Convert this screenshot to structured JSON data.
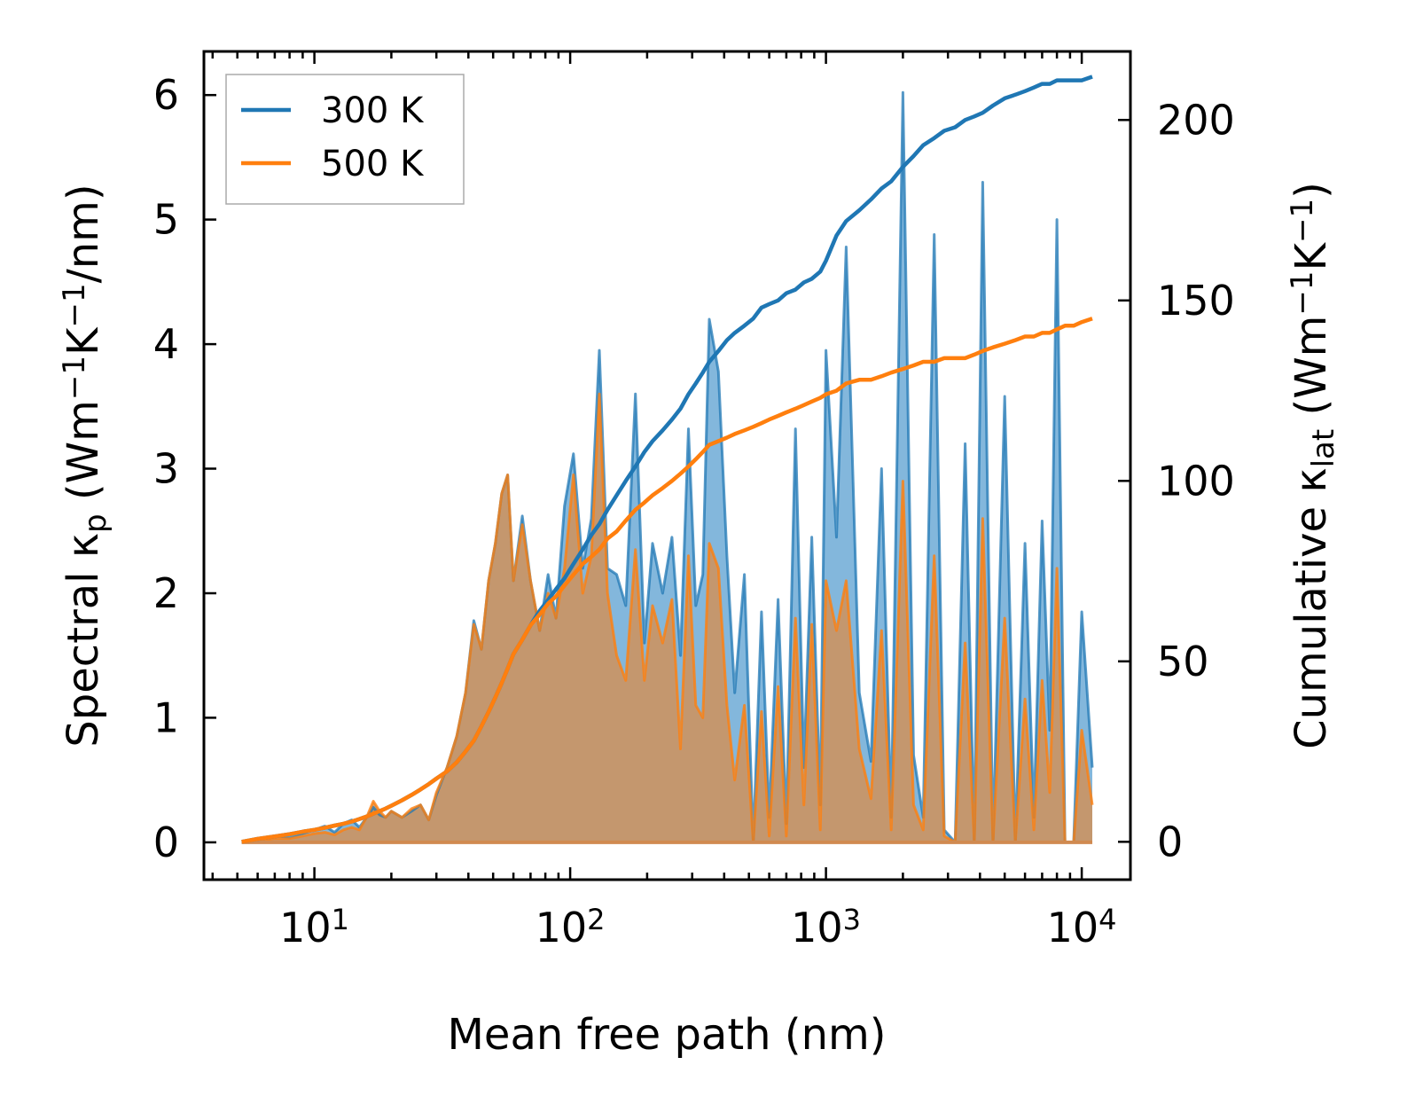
{
  "chart_data": {
    "type": "line",
    "xscale": "log",
    "xlabel": "Mean free path (nm)",
    "xlim": [
      3.7,
      15500
    ],
    "xticks": [
      {
        "base": "10",
        "exp": "1",
        "value": 10
      },
      {
        "base": "10",
        "exp": "2",
        "value": 100
      },
      {
        "base": "10",
        "exp": "3",
        "value": 1000
      },
      {
        "base": "10",
        "exp": "4",
        "value": 10000
      }
    ],
    "ylabel_left": {
      "prefix": "Spectral κ",
      "sub": "p",
      "unit_a": " (Wm",
      "sup_a": "−1",
      "unit_b": "K",
      "sup_b": "−1",
      "unit_c": "/nm)"
    },
    "ylim_left": [
      -0.3,
      6.35
    ],
    "yticks_left": [
      0,
      1,
      2,
      3,
      4,
      5,
      6
    ],
    "ylabel_right": {
      "prefix": "Cumulative κ",
      "sub": "lat",
      "unit_a": " (Wm",
      "sup_a": "−1",
      "unit_b": "K",
      "sup_b": "−1",
      "unit_c": ")"
    },
    "ylim_right": [
      -10.5,
      219
    ],
    "yticks_right": [
      0,
      50,
      100,
      150,
      200
    ],
    "legend": {
      "position": "top-left",
      "entries": [
        "300 K",
        "500 K"
      ]
    },
    "colors": {
      "s300": "#1f77b4",
      "s500": "#ff7f0e",
      "fill300": "#5a9fd0",
      "fill500": "#d0925a",
      "overlap": "#c49a6c"
    },
    "series": [
      {
        "name": "300 K",
        "x": [
          5.2,
          6,
          7,
          8,
          9,
          10,
          11,
          12,
          13,
          14,
          15,
          16,
          17,
          18,
          19,
          20,
          22,
          24,
          26,
          28,
          30,
          33,
          36,
          39,
          42,
          45,
          48,
          51,
          54,
          57,
          60,
          65,
          70,
          76,
          82,
          88,
          95,
          103,
          112,
          121,
          130,
          140,
          152,
          165,
          180,
          195,
          210,
          230,
          250,
          270,
          290,
          310,
          330,
          350,
          380,
          410,
          440,
          480,
          520,
          560,
          600,
          650,
          700,
          760,
          820,
          880,
          950,
          1000,
          1100,
          1200,
          1350,
          1500,
          1650,
          1800,
          2000,
          2200,
          2400,
          2650,
          2900,
          3200,
          3500,
          3800,
          4100,
          4500,
          5000,
          5500,
          6000,
          6500,
          7000,
          7500,
          8000,
          8600,
          9300,
          10000,
          11000
        ],
        "spectral": [
          0.0,
          0.02,
          0.05,
          0.04,
          0.07,
          0.1,
          0.13,
          0.08,
          0.15,
          0.18,
          0.12,
          0.2,
          0.28,
          0.22,
          0.2,
          0.25,
          0.2,
          0.25,
          0.3,
          0.18,
          0.38,
          0.6,
          0.85,
          1.2,
          1.78,
          1.55,
          2.1,
          2.4,
          2.8,
          2.95,
          2.1,
          2.62,
          2.1,
          1.7,
          2.15,
          1.8,
          2.7,
          3.12,
          2.2,
          2.6,
          3.95,
          2.2,
          2.15,
          1.9,
          3.6,
          1.6,
          2.4,
          2.0,
          2.45,
          1.5,
          3.32,
          1.9,
          2.15,
          4.2,
          3.78,
          2.3,
          1.2,
          2.15,
          0.0,
          1.85,
          0.2,
          1.95,
          0.15,
          3.32,
          0.6,
          2.45,
          0.3,
          3.95,
          2.45,
          4.78,
          1.2,
          0.65,
          3.0,
          0.2,
          6.02,
          0.7,
          0.2,
          4.88,
          0.1,
          0.0,
          3.2,
          0.0,
          5.3,
          0.0,
          3.58,
          0.0,
          2.4,
          0.2,
          2.58,
          0.9,
          5.0,
          0.0,
          0.0,
          1.85,
          0.6
        ],
        "cumulative": [
          0,
          0.8,
          1.5,
          2.1,
          2.8,
          3.3,
          3.9,
          4.5,
          5.0,
          5.6,
          6.3,
          7.0,
          7.8,
          8.5,
          9.2,
          10.0,
          11.5,
          13.0,
          14.5,
          16.0,
          17.5,
          19.5,
          22,
          25,
          28,
          32,
          36,
          40,
          44,
          48,
          52,
          56,
          60,
          64,
          67,
          70,
          73,
          77,
          81,
          85,
          88,
          92,
          96,
          100,
          104,
          108,
          111,
          114,
          117,
          120,
          124,
          127,
          130,
          133,
          136,
          139,
          141,
          143,
          145,
          148,
          149,
          150,
          152,
          153,
          155,
          156,
          158,
          161,
          168,
          172,
          175,
          178,
          181,
          183,
          187,
          190,
          193,
          195,
          197,
          198,
          200,
          201,
          202,
          204,
          206,
          207,
          208,
          209,
          210,
          210,
          211,
          211,
          211,
          211,
          212
        ]
      },
      {
        "name": "500 K",
        "x": [
          5.2,
          6,
          7,
          8,
          9,
          10,
          11,
          12,
          13,
          14,
          15,
          16,
          17,
          18,
          19,
          20,
          22,
          24,
          26,
          28,
          30,
          33,
          36,
          39,
          42,
          45,
          48,
          51,
          54,
          57,
          60,
          65,
          70,
          76,
          82,
          88,
          95,
          103,
          112,
          121,
          130,
          140,
          152,
          165,
          180,
          195,
          210,
          230,
          250,
          270,
          290,
          310,
          330,
          350,
          380,
          410,
          440,
          480,
          520,
          560,
          600,
          650,
          700,
          760,
          820,
          880,
          950,
          1000,
          1100,
          1200,
          1350,
          1500,
          1650,
          1800,
          2000,
          2200,
          2400,
          2650,
          2900,
          3200,
          3500,
          3800,
          4100,
          4500,
          5000,
          5500,
          6000,
          6500,
          7000,
          7500,
          8000,
          8600,
          9300,
          10000,
          11000
        ],
        "spectral": [
          0.0,
          0.01,
          0.03,
          0.03,
          0.05,
          0.07,
          0.08,
          0.06,
          0.1,
          0.12,
          0.1,
          0.2,
          0.33,
          0.25,
          0.2,
          0.25,
          0.2,
          0.27,
          0.3,
          0.18,
          0.4,
          0.6,
          0.85,
          1.2,
          1.75,
          1.55,
          2.1,
          2.4,
          2.8,
          2.95,
          2.1,
          2.55,
          2.1,
          1.7,
          2.0,
          1.8,
          2.2,
          2.95,
          2.0,
          2.3,
          3.6,
          2.0,
          1.5,
          1.3,
          2.35,
          1.3,
          1.9,
          1.6,
          1.95,
          0.75,
          2.3,
          1.1,
          1.0,
          2.4,
          2.2,
          1.1,
          0.5,
          1.1,
          0.0,
          1.05,
          0.05,
          1.25,
          0.05,
          1.8,
          0.3,
          1.75,
          0.1,
          2.1,
          1.7,
          2.1,
          0.75,
          0.35,
          1.7,
          0.1,
          2.9,
          0.3,
          0.1,
          2.3,
          0.05,
          0.0,
          1.6,
          0.0,
          2.6,
          0.0,
          1.8,
          0.0,
          1.15,
          0.1,
          1.3,
          0.4,
          2.2,
          0.0,
          0.0,
          0.9,
          0.3
        ],
        "cumulative": [
          0,
          0.8,
          1.5,
          2.1,
          2.8,
          3.3,
          3.9,
          4.5,
          5.0,
          5.6,
          6.3,
          7.0,
          7.8,
          8.5,
          9.2,
          10.0,
          11.5,
          13.0,
          14.5,
          16.0,
          17.5,
          19.5,
          22,
          25,
          28,
          32,
          36,
          40,
          44,
          48,
          52,
          56,
          60,
          63,
          66,
          68,
          71,
          74,
          77,
          79,
          81,
          84,
          86,
          89,
          92,
          94,
          96,
          98,
          100,
          102,
          104,
          106,
          108,
          110,
          111,
          112,
          113,
          114,
          115,
          116,
          117,
          118,
          119,
          120,
          121,
          122,
          123,
          124,
          125,
          127,
          128,
          128,
          129,
          130,
          131,
          132,
          133,
          133,
          134,
          134,
          134,
          135,
          136,
          137,
          138,
          139,
          140,
          140,
          141,
          141,
          142,
          143,
          143,
          144,
          145
        ]
      }
    ]
  }
}
